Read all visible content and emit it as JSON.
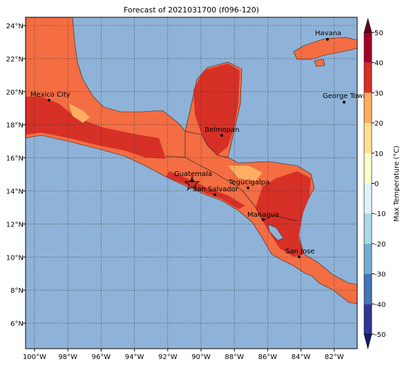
{
  "title": "Forecast of 2021031700 (f096-120)",
  "x_axis": {
    "labels": [
      "100°W",
      "98°W",
      "96°W",
      "94°W",
      "92°W",
      "90°W",
      "88°W",
      "86°W",
      "84°W",
      "82°W"
    ]
  },
  "y_axis": {
    "labels": [
      "24°N",
      "22°N",
      "20°N",
      "18°N",
      "16°N",
      "14°N",
      "12°N",
      "10°N",
      "8°N",
      "6°N"
    ]
  },
  "colorbar": {
    "label": "Max Temperature (°C)",
    "ticks": [
      50,
      40,
      30,
      20,
      10,
      0,
      -10,
      -20,
      -30,
      -40,
      -50
    ]
  },
  "cities": [
    "Mexico City",
    "Havana",
    "George Town",
    "Belmopan",
    "Guatemala",
    "Tegucigalpa",
    "San Salvador",
    "Managua",
    "San Jose"
  ]
}
